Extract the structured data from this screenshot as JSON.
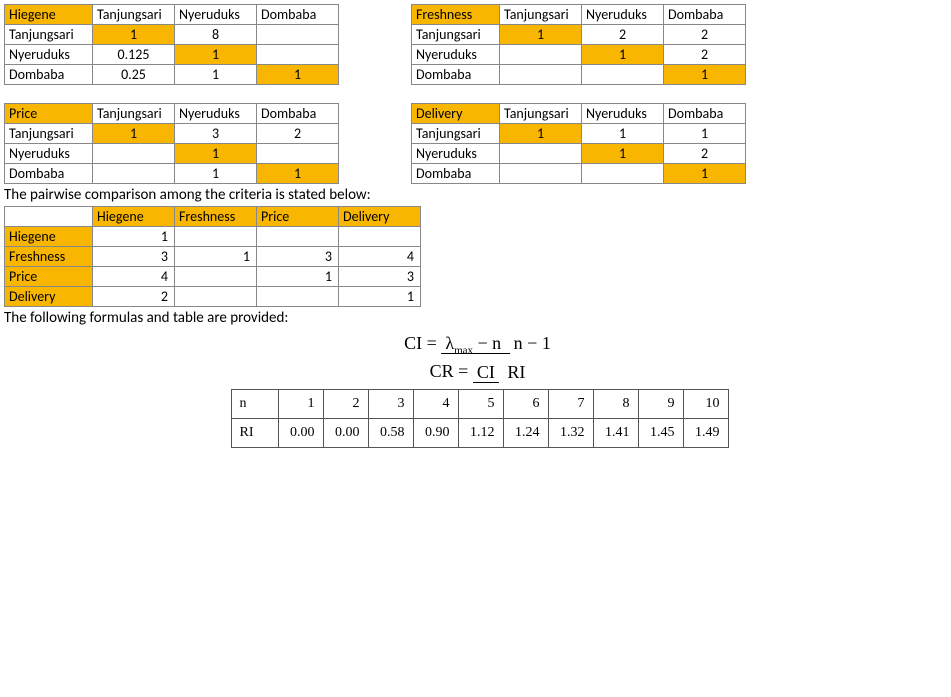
{
  "tables": {
    "hiegene": {
      "title": "Hiegene",
      "cols": [
        "Tanjungsari",
        "Nyeruduks",
        "Dombaba"
      ],
      "rows": [
        {
          "label": "Tanjungsari",
          "vals": [
            "1",
            "8",
            ""
          ],
          "hl": [
            true,
            false,
            false
          ]
        },
        {
          "label": "Nyeruduks",
          "vals": [
            "0.125",
            "1",
            ""
          ],
          "hl": [
            false,
            true,
            false
          ]
        },
        {
          "label": "Dombaba",
          "vals": [
            "0.25",
            "1",
            "1"
          ],
          "hl": [
            false,
            false,
            true
          ]
        }
      ],
      "title_hl": true
    },
    "freshness": {
      "title": "Freshness",
      "cols": [
        "Tanjungsari",
        "Nyeruduks",
        "Dombaba"
      ],
      "rows": [
        {
          "label": "Tanjungsari",
          "vals": [
            "1",
            "2",
            "2"
          ],
          "hl": [
            true,
            false,
            false
          ]
        },
        {
          "label": "Nyeruduks",
          "vals": [
            "",
            "1",
            "2"
          ],
          "hl": [
            false,
            true,
            false
          ]
        },
        {
          "label": "Dombaba",
          "vals": [
            "",
            "",
            "1"
          ],
          "hl": [
            false,
            false,
            true
          ]
        }
      ],
      "title_hl": true
    },
    "price": {
      "title": "Price",
      "cols": [
        "Tanjungsari",
        "Nyeruduks",
        "Dombaba"
      ],
      "rows": [
        {
          "label": "Tanjungsari",
          "vals": [
            "1",
            "3",
            "2"
          ],
          "hl": [
            true,
            false,
            false
          ]
        },
        {
          "label": "Nyeruduks",
          "vals": [
            "",
            "1",
            ""
          ],
          "hl": [
            false,
            true,
            false
          ]
        },
        {
          "label": "Dombaba",
          "vals": [
            "",
            "1",
            "1"
          ],
          "hl": [
            false,
            false,
            true
          ]
        }
      ],
      "title_hl": true
    },
    "delivery": {
      "title": "Delivery",
      "cols": [
        "Tanjungsari",
        "Nyeruduks",
        "Dombaba"
      ],
      "rows": [
        {
          "label": "Tanjungsari",
          "vals": [
            "1",
            "1",
            "1"
          ],
          "hl": [
            true,
            false,
            false
          ]
        },
        {
          "label": "Nyeruduks",
          "vals": [
            "",
            "1",
            "2"
          ],
          "hl": [
            false,
            true,
            false
          ]
        },
        {
          "label": "Dombaba",
          "vals": [
            "",
            "",
            "1"
          ],
          "hl": [
            false,
            false,
            true
          ]
        }
      ],
      "title_hl": true
    }
  },
  "caption1": "The pairwise comparison among the criteria is stated below:",
  "criteria": {
    "cols": [
      "Hiegene",
      "Freshness",
      "Price",
      "Delivery"
    ],
    "rows": [
      {
        "label": "Hiegene",
        "vals": [
          "1",
          "",
          "",
          ""
        ]
      },
      {
        "label": "Freshness",
        "vals": [
          "3",
          "1",
          "3",
          "4"
        ]
      },
      {
        "label": "Price",
        "vals": [
          "4",
          "",
          "1",
          "3"
        ]
      },
      {
        "label": "Delivery",
        "vals": [
          "2",
          "",
          "",
          "1"
        ]
      }
    ]
  },
  "caption2": "The following formulas and table are provided:",
  "formula_ci_lhs": "CI =",
  "formula_ci_top": "λ",
  "formula_ci_sub": "max",
  "formula_ci_top2": " − n",
  "formula_ci_bot": "n − 1",
  "formula_cr_lhs": "CR =",
  "formula_cr_top": "CI",
  "formula_cr_bot": "RI",
  "ri_table": {
    "header_label": "n",
    "header": [
      "1",
      "2",
      "3",
      "4",
      "5",
      "6",
      "7",
      "8",
      "9",
      "10"
    ],
    "row_label": "RI",
    "row": [
      "0.00",
      "0.00",
      "0.58",
      "0.90",
      "1.12",
      "1.24",
      "1.32",
      "1.41",
      "1.45",
      "1.49"
    ]
  }
}
